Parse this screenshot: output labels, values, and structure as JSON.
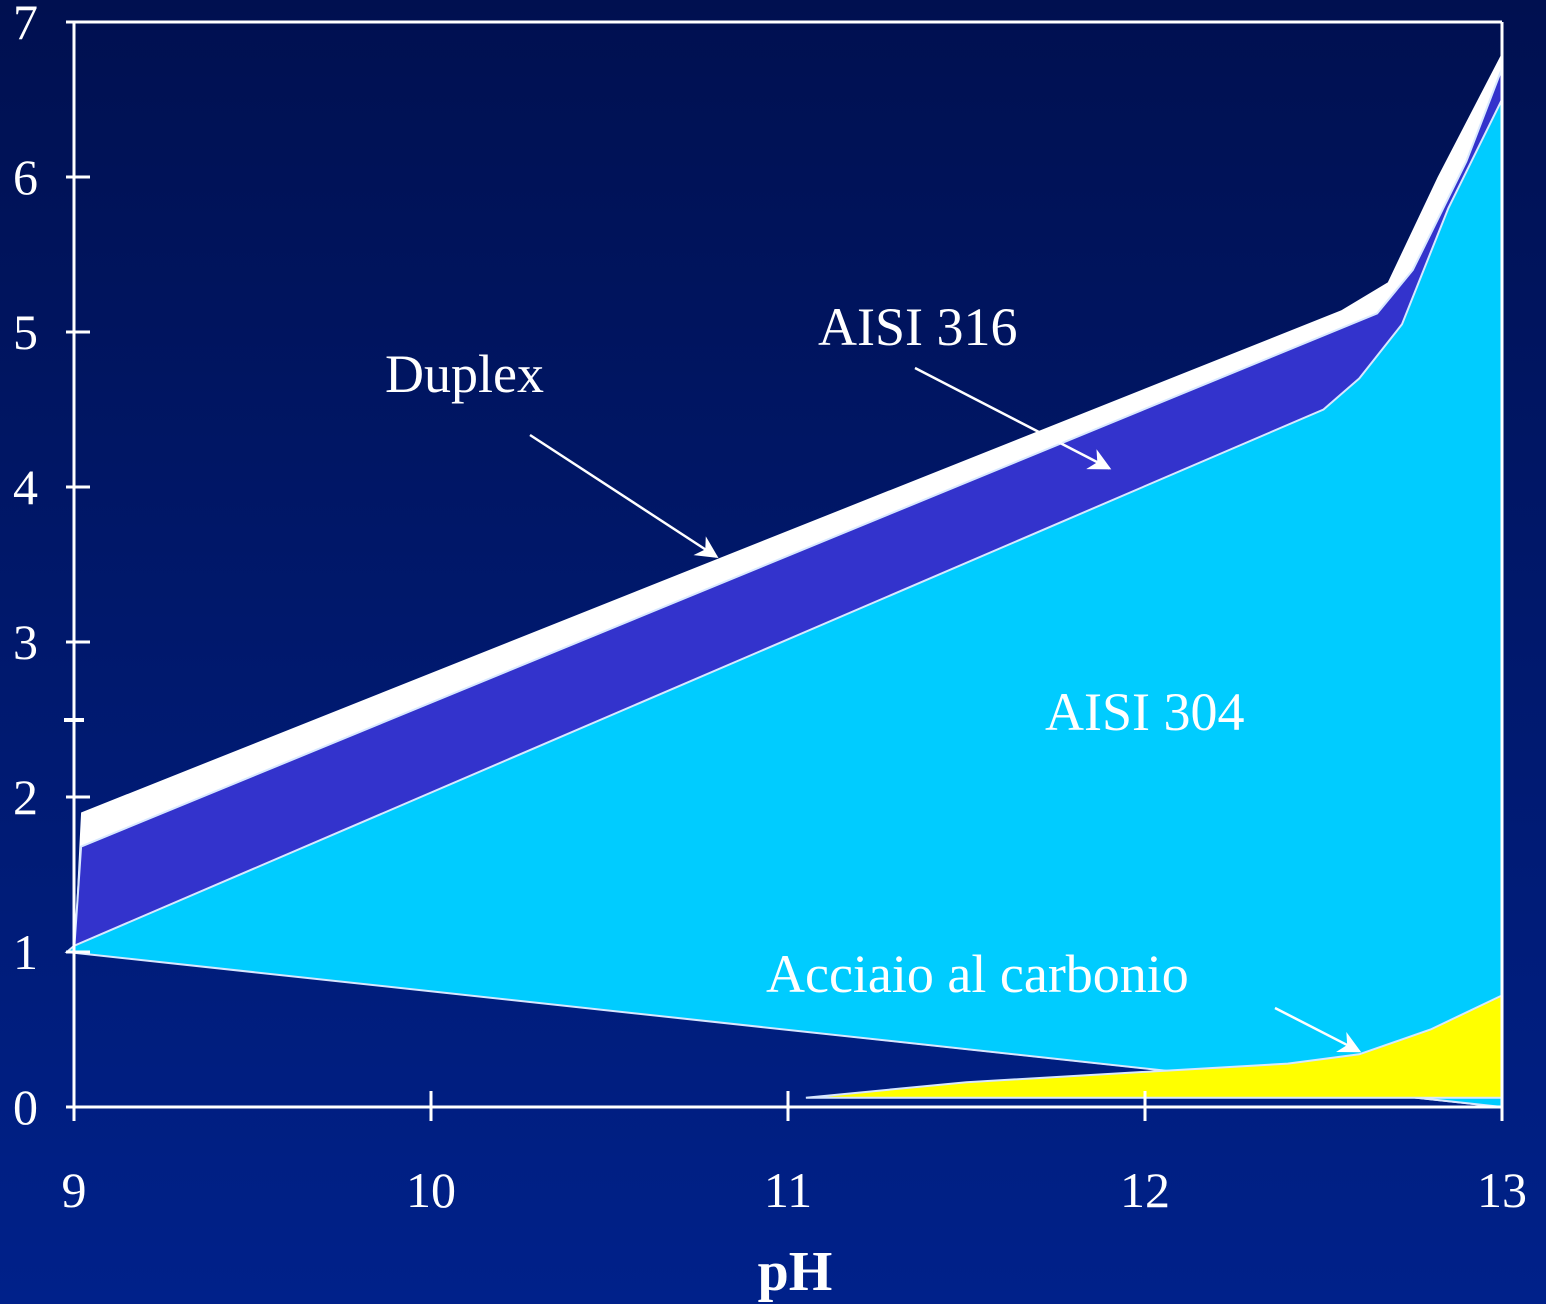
{
  "chart_data": {
    "type": "area",
    "title": "",
    "xlabel": "pH",
    "ylabel": "",
    "xlim": [
      9,
      13
    ],
    "ylim": [
      0,
      7
    ],
    "x_ticks": [
      "9",
      "10",
      "11",
      "12",
      "13"
    ],
    "y_ticks": [
      "0",
      "1",
      "2",
      "3",
      "4",
      "5",
      "6",
      "7"
    ],
    "grid": false,
    "series": [
      {
        "name": "Duplex",
        "color": "#ffffff",
        "points": [
          [
            9.0,
            1.0
          ],
          [
            9.02,
            1.9
          ],
          [
            12.55,
            5.14
          ],
          [
            12.68,
            5.32
          ],
          [
            12.82,
            6.0
          ],
          [
            13.0,
            6.8
          ],
          [
            13.0,
            0.0
          ]
        ]
      },
      {
        "name": "AISI 316",
        "color": "#3333cc",
        "points": [
          [
            9.0,
            1.0
          ],
          [
            9.02,
            1.68
          ],
          [
            12.65,
            5.12
          ],
          [
            12.75,
            5.4
          ],
          [
            12.9,
            6.1
          ],
          [
            13.0,
            6.7
          ],
          [
            13.0,
            0.0
          ]
        ]
      },
      {
        "name": "AISI 304",
        "color": "#00ccff",
        "points": [
          [
            8.98,
            1.0
          ],
          [
            9.0,
            1.04
          ],
          [
            12.5,
            4.5
          ],
          [
            12.6,
            4.7
          ],
          [
            12.72,
            5.05
          ],
          [
            12.85,
            5.8
          ],
          [
            13.0,
            6.5
          ],
          [
            13.0,
            0.0
          ]
        ]
      },
      {
        "name": "Acciaio al carbonio",
        "color": "#ffff00",
        "points": [
          [
            11.05,
            0.06
          ],
          [
            11.5,
            0.16
          ],
          [
            12.4,
            0.28
          ],
          [
            12.6,
            0.34
          ],
          [
            12.8,
            0.5
          ],
          [
            13.0,
            0.72
          ],
          [
            13.0,
            0.06
          ]
        ]
      }
    ],
    "annotations": [
      {
        "text": "Duplex",
        "target": [
          10.8,
          3.55
        ]
      },
      {
        "text": "AISI 316",
        "target": [
          11.9,
          4.12
        ]
      },
      {
        "text": "AISI 304",
        "target": null
      },
      {
        "text": "Acciaio al carbonio",
        "target": [
          12.6,
          0.36
        ]
      }
    ]
  }
}
